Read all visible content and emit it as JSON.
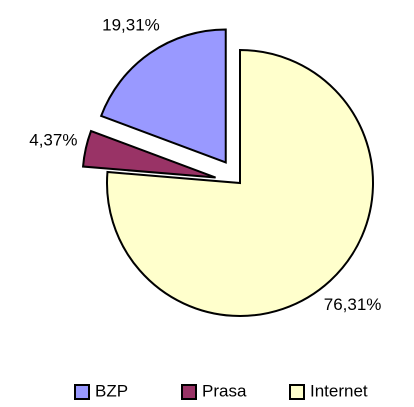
{
  "chart_data": {
    "type": "pie",
    "categories": [
      "BZP",
      "Prasa",
      "Internet"
    ],
    "values": [
      19.31,
      4.37,
      76.31
    ],
    "value_labels": [
      "19,31%",
      "4,37%",
      "76,31%"
    ],
    "colors": [
      "#9999ff",
      "#993366",
      "#ffffcc"
    ],
    "exploded": [
      true,
      true,
      false
    ],
    "start_order": [
      2,
      1,
      0
    ],
    "legend": "bottom"
  }
}
